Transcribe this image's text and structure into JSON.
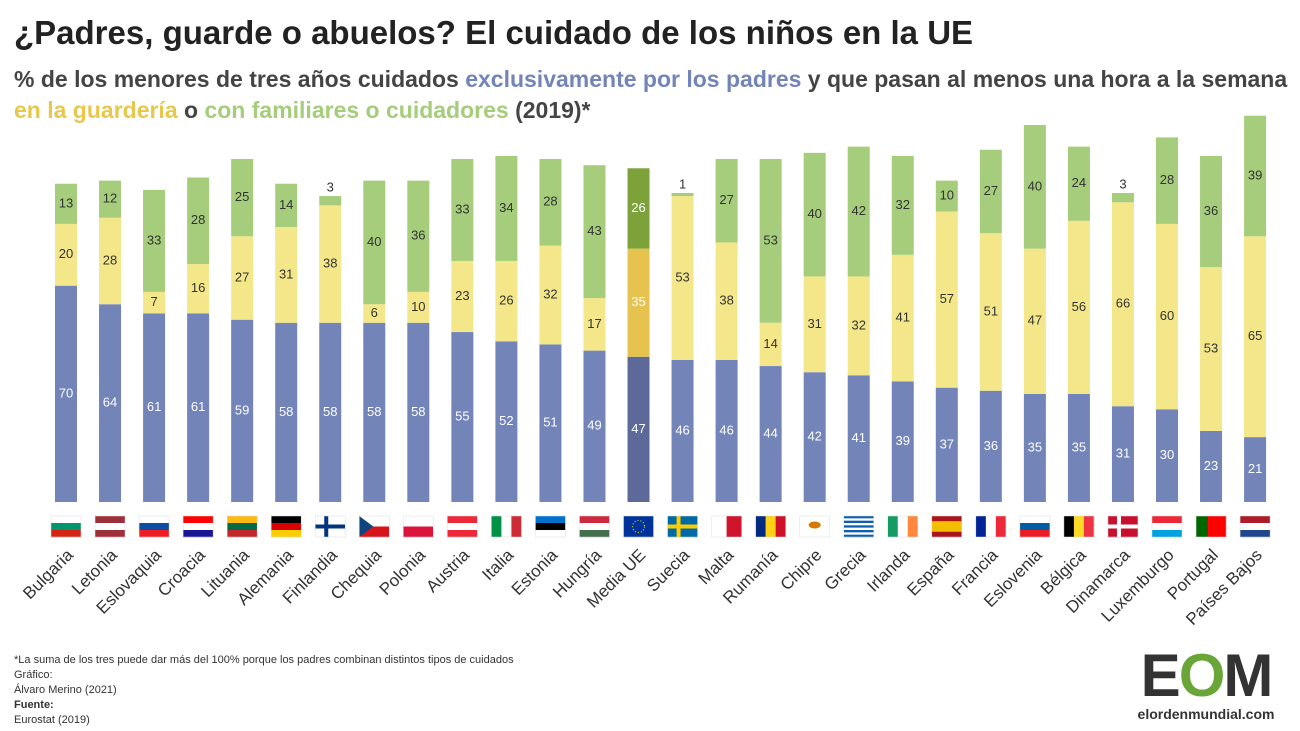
{
  "chart_data": {
    "type": "stacked_bar",
    "title": "¿Padres, guarde o abuelos? El cuidado de los niños en la UE",
    "subtitle_parts": [
      "% de los menores de tres años cuidados ",
      " y que pasan al menos una hora a la semana ",
      " o ",
      " (2019)*"
    ],
    "categories": [
      "Bulgaria",
      "Letonia",
      "Eslovaquia",
      "Croacia",
      "Lituania",
      "Alemania",
      "Finlandia",
      "Chequia",
      "Polonia",
      "Austria",
      "Italia",
      "Estonia",
      "Hungría",
      "Media UE",
      "Suecia",
      "Malta",
      "Rumanía",
      "Chipre",
      "Grecia",
      "Irlanda",
      "España",
      "Francia",
      "Eslovenia",
      "Bélgica",
      "Dinamarca",
      "Luxemburgo",
      "Portugal",
      "Países Bajos"
    ],
    "highlight": "Media UE",
    "series": [
      {
        "name": "exclusivamente por los padres",
        "color": "#7384b8",
        "highlight_color": "#5d6a99",
        "label_color": "#ffffff",
        "values": [
          70,
          64,
          61,
          61,
          59,
          58,
          58,
          58,
          58,
          55,
          52,
          51,
          49,
          47,
          46,
          46,
          44,
          42,
          41,
          39,
          37,
          36,
          35,
          35,
          31,
          30,
          23,
          21
        ]
      },
      {
        "name": "en la guardería",
        "color": "#f4e78a",
        "highlight_color": "#e6c24f",
        "label_color": "#333333",
        "values": [
          20,
          28,
          7,
          16,
          27,
          31,
          38,
          6,
          10,
          23,
          26,
          32,
          17,
          35,
          53,
          38,
          14,
          31,
          32,
          41,
          57,
          51,
          47,
          56,
          66,
          60,
          53,
          65
        ]
      },
      {
        "name": "con familiares o cuidadores",
        "color": "#a5cd7b",
        "highlight_color": "#7da23a",
        "label_color": "#333333",
        "values": [
          13,
          12,
          33,
          28,
          25,
          14,
          3,
          40,
          36,
          33,
          34,
          28,
          43,
          26,
          1,
          27,
          53,
          40,
          42,
          32,
          10,
          27,
          40,
          24,
          3,
          28,
          36,
          39
        ]
      }
    ]
  },
  "footer": {
    "note": "*La suma de los tres puede dar más del 100% porque los padres combinan distintos tipos de cuidados",
    "graphic_label": "Gráfico:",
    "graphic_author": "Álvaro Merino (2021)",
    "source_label": "Fuente:",
    "source": "Eurostat (2019)"
  },
  "logo": {
    "letters": "EOM",
    "site": "elordenmundial.com"
  }
}
